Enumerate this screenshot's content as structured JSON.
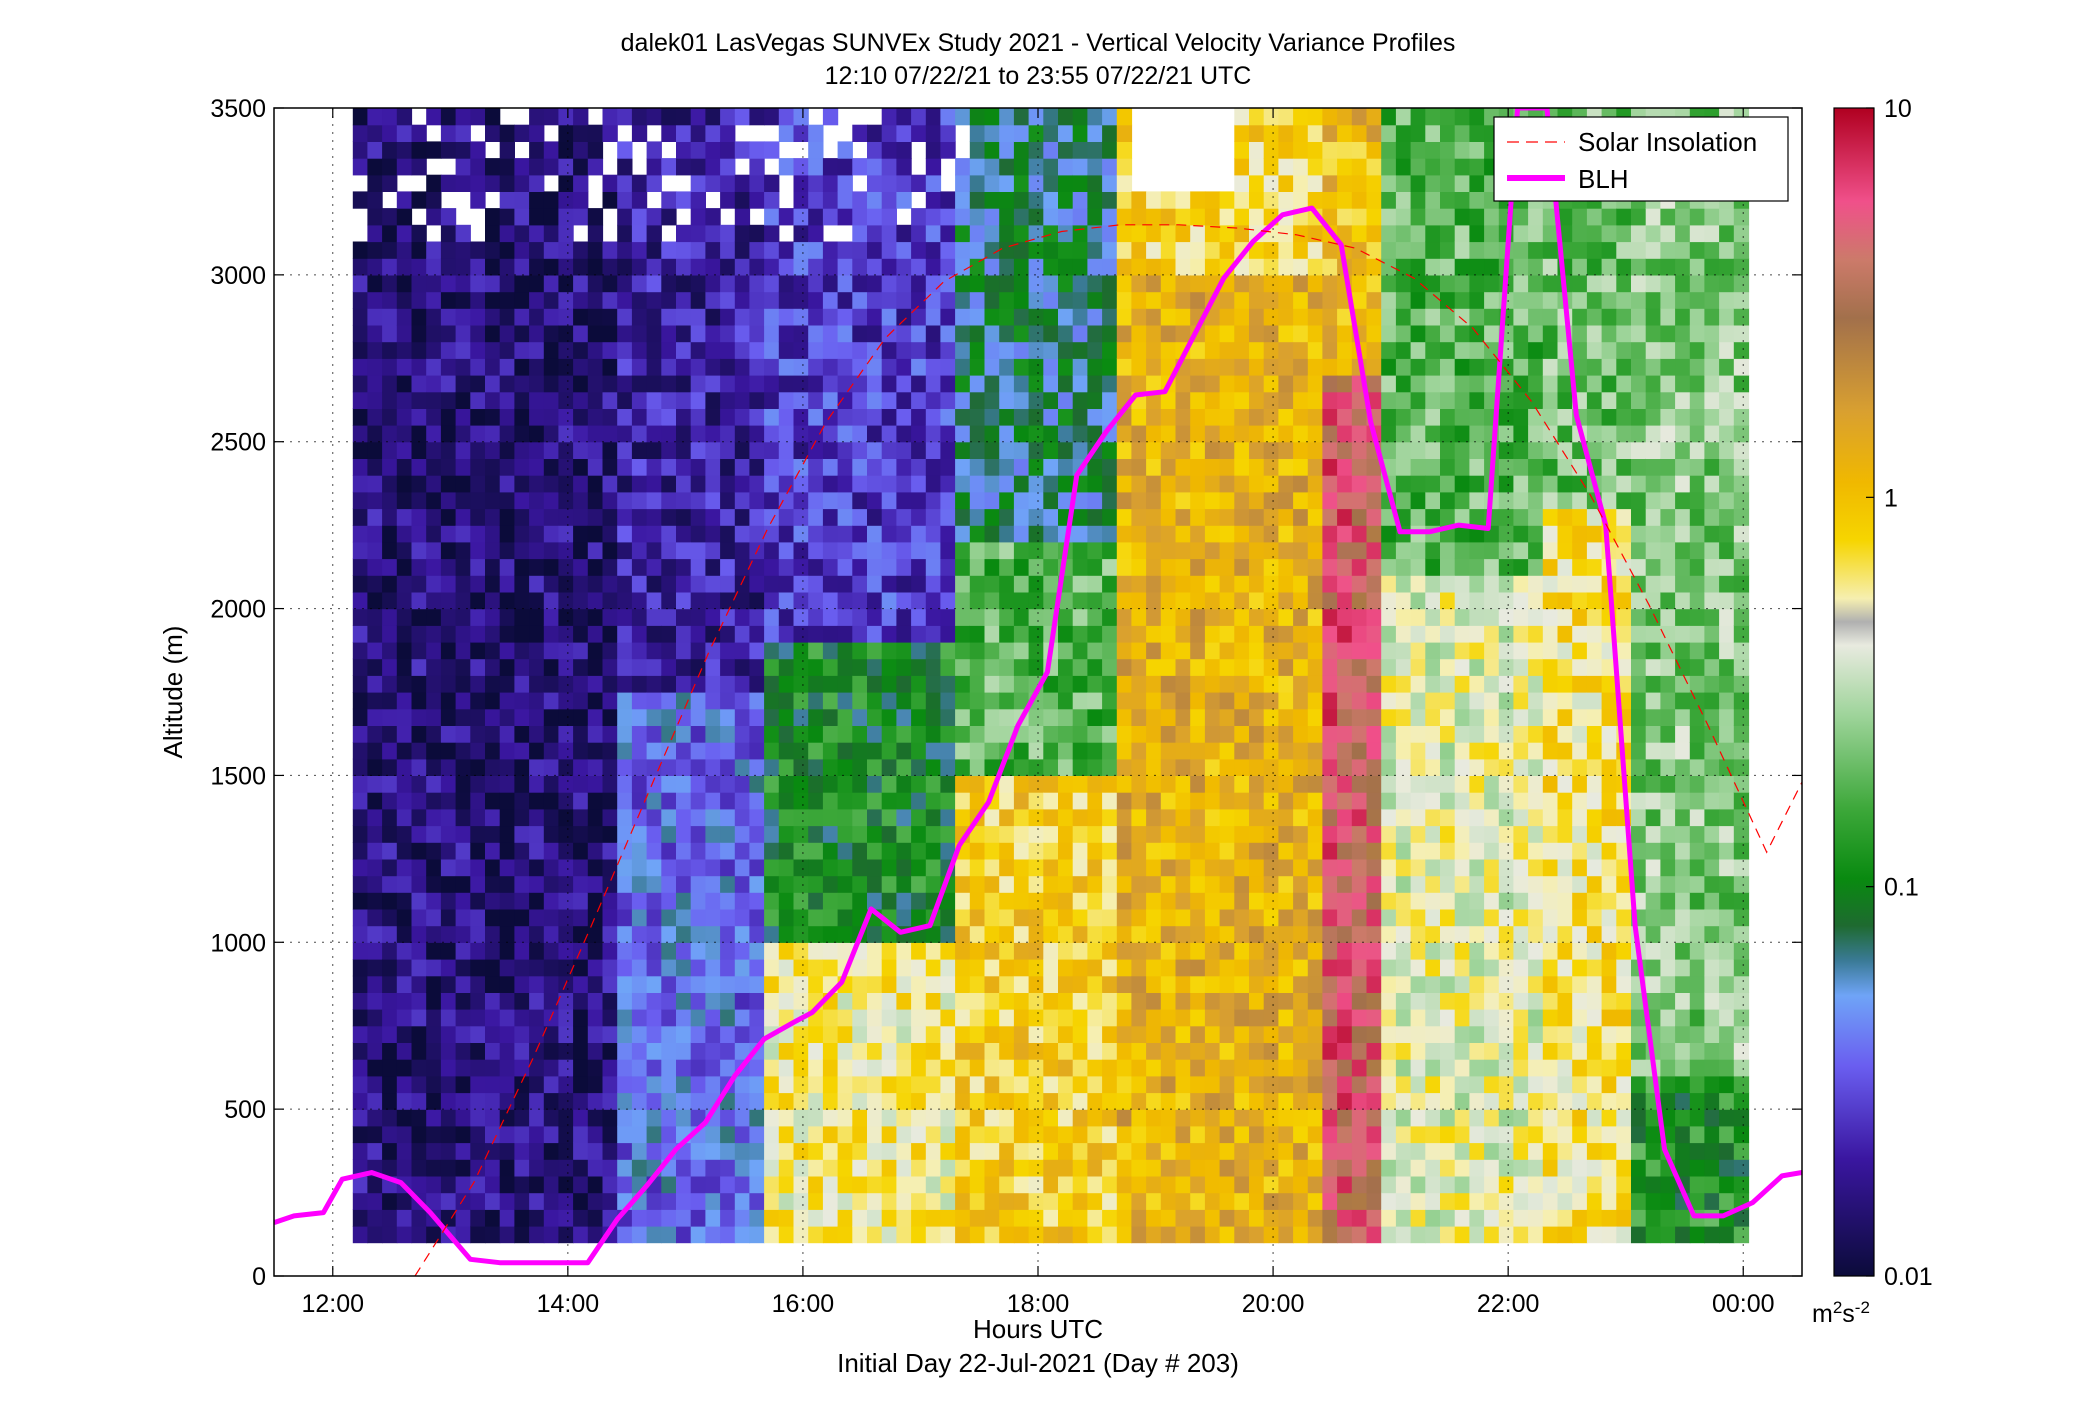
{
  "chart_data": {
    "type": "heatmap",
    "title": "dalek01 LasVegas SUNVEx Study 2021 - Vertical Velocity Variance Profiles",
    "subtitle": "12:10 07/22/21 to 23:55 07/22/21  UTC",
    "xlabel": "Hours UTC",
    "xlabel2": "Initial Day 22-Jul-2021 (Day # 203)",
    "ylabel": "Altitude (m)",
    "xlim": [
      11.5,
      24.5
    ],
    "ylim": [
      0,
      3500
    ],
    "x_ticks": [
      {
        "value": 12,
        "label": "12:00"
      },
      {
        "value": 14,
        "label": "14:00"
      },
      {
        "value": 16,
        "label": "16:00"
      },
      {
        "value": 18,
        "label": "18:00"
      },
      {
        "value": 20,
        "label": "20:00"
      },
      {
        "value": 22,
        "label": "22:00"
      },
      {
        "value": 24,
        "label": "00:00"
      }
    ],
    "y_ticks": [
      0,
      500,
      1000,
      1500,
      2000,
      2500,
      3000,
      3500
    ],
    "y_tick_labels": [
      "0",
      "500",
      "1000",
      "1500",
      "2000",
      "2500",
      "3000",
      "3500"
    ],
    "grid": true,
    "colorbar": {
      "scale": "log",
      "ticks": [
        0.01,
        0.1,
        1,
        10
      ],
      "tick_labels": [
        "0.01",
        "0.1",
        "1",
        "10"
      ],
      "unit_base": "m",
      "unit_sup1": "2",
      "unit_mid": "s",
      "unit_sup2": "-2"
    },
    "legend": {
      "position": "top-right",
      "entries": [
        "Solar Insolation",
        "BLH"
      ]
    },
    "series": [
      {
        "name": "BLH",
        "color": "#ff00ff",
        "x": [
          11.5,
          11.67,
          11.92,
          12.08,
          12.33,
          12.58,
          12.83,
          13.17,
          13.42,
          13.67,
          13.92,
          14.17,
          14.42,
          14.67,
          14.92,
          15.17,
          15.42,
          15.67,
          15.92,
          16.08,
          16.33,
          16.58,
          16.83,
          17.08,
          17.33,
          17.58,
          17.83,
          18.08,
          18.33,
          18.58,
          18.83,
          19.08,
          19.33,
          19.58,
          19.83,
          20.08,
          20.33,
          20.58,
          20.83,
          21.08,
          21.33,
          21.58,
          21.83,
          22.08,
          22.33,
          22.58,
          22.83,
          23.08,
          23.33,
          23.58,
          23.83,
          24.08,
          24.33,
          24.5
        ],
        "y": [
          160,
          180,
          190,
          290,
          310,
          280,
          190,
          50,
          40,
          40,
          40,
          40,
          170,
          270,
          380,
          460,
          600,
          710,
          760,
          790,
          880,
          1100,
          1030,
          1050,
          1290,
          1420,
          1650,
          1810,
          2400,
          2530,
          2640,
          2650,
          2820,
          2990,
          3100,
          3180,
          3200,
          3090,
          2560,
          2230,
          2230,
          2250,
          2240,
          3500,
          3500,
          2580,
          2250,
          1050,
          380,
          180,
          180,
          220,
          300,
          310
        ]
      },
      {
        "name": "Solar Insolation",
        "color": "#ff0000",
        "style": "dashed",
        "x": [
          12.7,
          13.2,
          13.7,
          14.2,
          14.7,
          15.2,
          15.7,
          16.2,
          16.7,
          17.2,
          17.7,
          18.2,
          18.7,
          19.2,
          19.7,
          20.2,
          20.7,
          21.2,
          21.7,
          22.2,
          22.7,
          23.2,
          23.7,
          24.2,
          24.5
        ],
        "y": [
          0,
          280,
          650,
          1050,
          1460,
          1870,
          2240,
          2560,
          2810,
          2980,
          3080,
          3130,
          3150,
          3150,
          3140,
          3120,
          3080,
          2990,
          2840,
          2620,
          2340,
          2010,
          1650,
          1270,
          1480
        ]
      }
    ]
  }
}
